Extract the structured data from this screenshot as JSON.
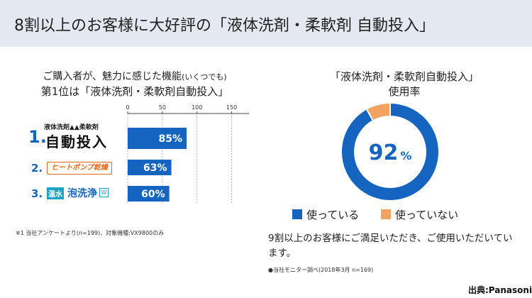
{
  "header": {
    "title": "8割以上のお客様に大好評の「液体洗剤・柔軟剤 自動投入」"
  },
  "left_panel": {
    "heading_line1": "ご購入者が、魅力に感じた機能",
    "heading_line1_small": "(いくつでも)",
    "heading_line2": "第1位は「液体洗剤・柔軟剤自動投入」",
    "footnote": "※1 当社アンケートより(n=199)、対象機種:VX9800のみ"
  },
  "categories_display": {
    "c1_number": "1.",
    "c1_sub": "液体洗剤▲▲柔軟剤",
    "c1_main": "自動投入",
    "c2_number": "2.",
    "c2_main": "ヒートポンプ乾燥",
    "c3_number": "3.",
    "c3_tag": "温水",
    "c3_main": "泡洗浄",
    "c3_w": "W"
  },
  "right_panel": {
    "heading_line1": "「液体洗剤・柔軟剤自動投入」",
    "heading_line2": "使用率",
    "note": "9割以上のお客様にご満足いただき、ご使用いただいています。",
    "source": "●当社モニター調べ(2018年3月 n=169)"
  },
  "credit": "出典:Panasonic",
  "colors": {
    "blue": "#1565c0",
    "orange": "#f4a261",
    "bar_label": "#ffffff",
    "axis": "#444444"
  },
  "chart_data": [
    {
      "type": "bar",
      "orientation": "horizontal",
      "categories": [
        "液体洗剤・柔軟剤 自動投入",
        "ヒートポンプ乾燥",
        "温水泡洗浄W"
      ],
      "values": [
        85,
        63,
        60
      ],
      "value_labels": [
        "85%",
        "63%",
        "60%"
      ],
      "xlim": [
        0,
        175
      ],
      "xticks": [
        0,
        50,
        100,
        150
      ],
      "xtick_labels": [
        "0",
        "50",
        "100",
        "150"
      ],
      "grid": true
    },
    {
      "type": "pie",
      "donut": true,
      "labels": [
        "使っている",
        "使っていない"
      ],
      "values": [
        92,
        8
      ],
      "center_value": "92",
      "center_unit": "%",
      "legend": "bottom"
    }
  ]
}
